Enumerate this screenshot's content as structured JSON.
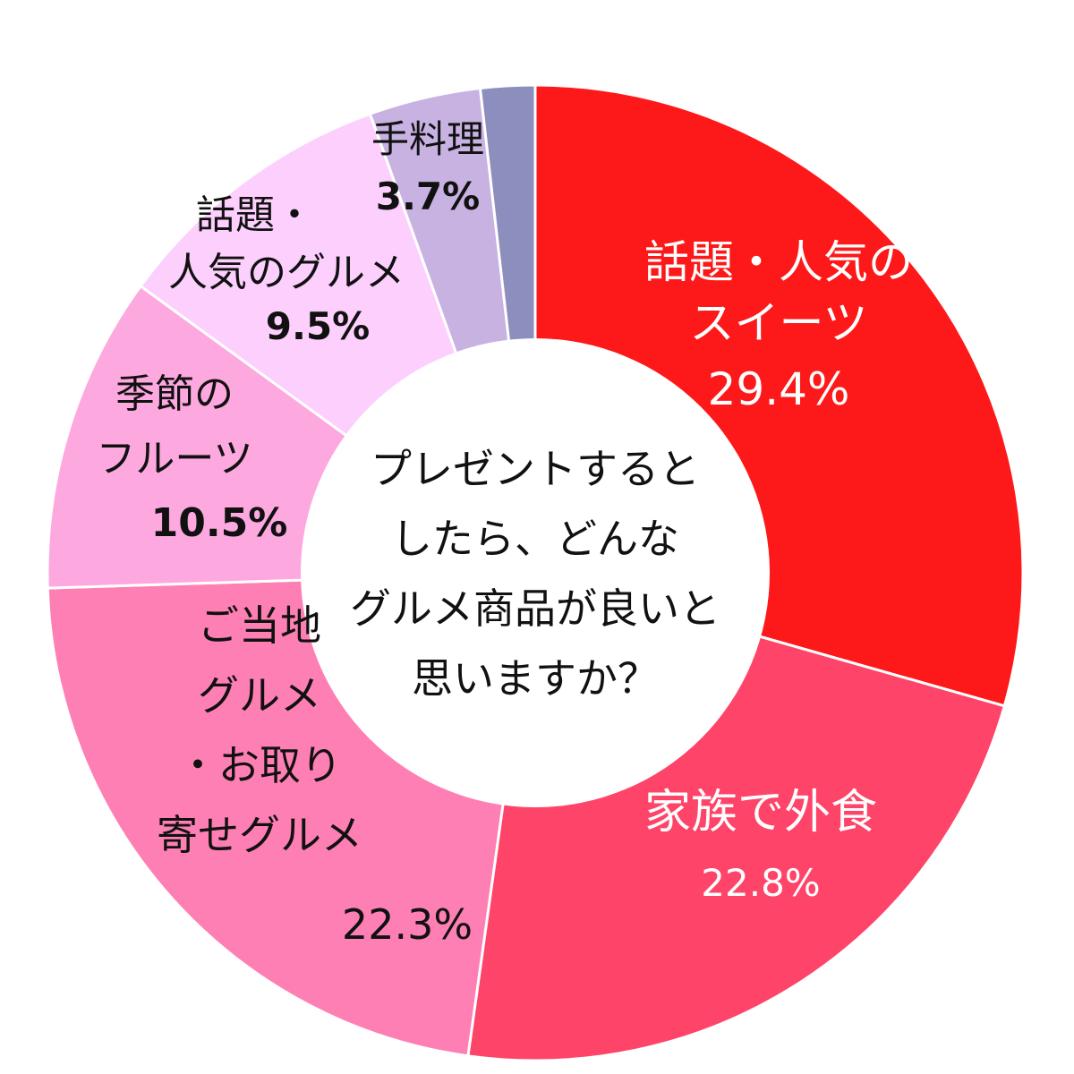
{
  "chart_data": {
    "type": "pie",
    "title": "",
    "center_text": [
      "プレゼントすると",
      "したら、どんな",
      "グルメ商品が良いと",
      "思いますか？"
    ],
    "slices": [
      {
        "label_lines": [
          "話題・人気の",
          "スイーツ"
        ],
        "value_text": "29.4%",
        "value": 29.4,
        "color": "#fd1919",
        "text_color": "#ffffff"
      },
      {
        "label_lines": [
          "家族で外食"
        ],
        "value_text": "22.8%",
        "value": 22.8,
        "color": "#fe4468",
        "text_color": "#ffffff"
      },
      {
        "label_lines": [
          "ご当地",
          "グルメ",
          "・お取り",
          "寄せグルメ"
        ],
        "value_text": "22.3%",
        "value": 22.3,
        "color": "#fe7fb4",
        "text_color": "#111111"
      },
      {
        "label_lines": [
          "季節の",
          "フルーツ"
        ],
        "value_text": "10.5%",
        "value": 10.5,
        "color": "#fea8e0",
        "text_color": "#111111"
      },
      {
        "label_lines": [
          "話題・",
          "人気のグルメ"
        ],
        "value_text": "9.5%",
        "value": 9.5,
        "color": "#fdcffd",
        "text_color": "#111111"
      },
      {
        "label_lines": [
          "手料理"
        ],
        "value_text": "3.7%",
        "value": 3.7,
        "color": "#c8b2e2",
        "text_color": "#111111"
      },
      {
        "label_lines": [],
        "value_text": "",
        "value": 1.8,
        "color": "#8c8fbd",
        "text_color": "#111111"
      }
    ]
  }
}
